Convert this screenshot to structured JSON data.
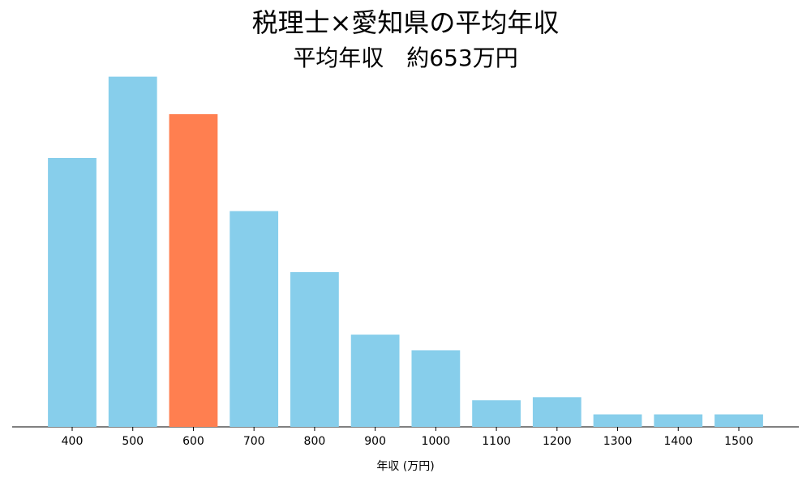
{
  "chart_data": {
    "type": "bar",
    "title": "税理士×愛知県の平均年収",
    "subtitle": "平均年収　約653万円",
    "x_label": "年収 (万円)",
    "categories": [
      "400",
      "500",
      "600",
      "700",
      "800",
      "900",
      "1000",
      "1100",
      "1200",
      "1300",
      "1400",
      "1500"
    ],
    "values": [
      17.2,
      22.4,
      20.0,
      13.8,
      9.9,
      5.9,
      4.9,
      1.7,
      1.9,
      0.8,
      0.8,
      0.8
    ],
    "colors": [
      "#87ceeb",
      "#87ceeb",
      "#ff7f50",
      "#87ceeb",
      "#87ceeb",
      "#87ceeb",
      "#87ceeb",
      "#87ceeb",
      "#87ceeb",
      "#87ceeb",
      "#87ceeb",
      "#87ceeb"
    ],
    "ylim": [
      0,
      23.5
    ],
    "grid": false
  }
}
